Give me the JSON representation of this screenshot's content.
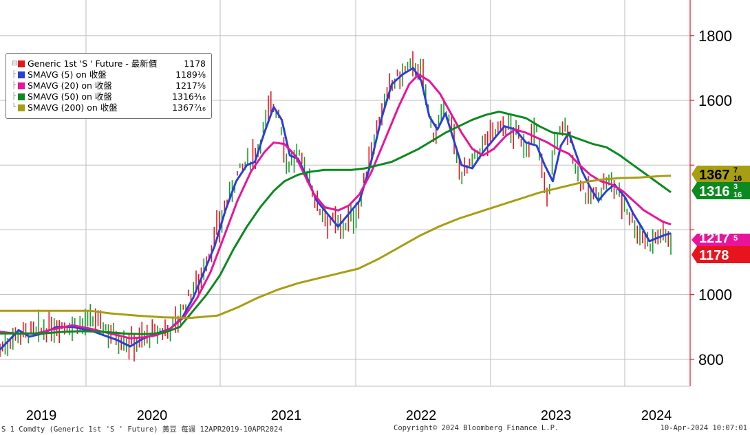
{
  "chart_data": {
    "type": "line",
    "x_start_year": 2019.28,
    "x_end_year": 2024.28,
    "ylim": [
      717,
      1910
    ],
    "y_ticks": [
      800,
      1000,
      1200,
      1400,
      1600,
      1800
    ],
    "y_tick_labels": [
      "800",
      "1000",
      "",
      "",
      "1600",
      "1800"
    ],
    "x_ticks": [
      2019,
      2020,
      2021,
      2022,
      2023,
      2024
    ],
    "x_tick_labels": [
      "2019",
      "2020",
      "2021",
      "2022",
      "2023",
      "2024"
    ],
    "grid": true,
    "series": [
      {
        "name": "Generic 1st 'S ' Future - 最新價",
        "color": "#e8141d",
        "style": "hl-bars",
        "last_value": "1178",
        "points": [
          [
            2019.28,
            830
          ],
          [
            2019.4,
            880
          ],
          [
            2019.55,
            880
          ],
          [
            2019.7,
            905
          ],
          [
            2019.85,
            905
          ],
          [
            2020.0,
            920
          ],
          [
            2020.12,
            880
          ],
          [
            2020.25,
            850
          ],
          [
            2020.35,
            865
          ],
          [
            2020.45,
            880
          ],
          [
            2020.55,
            895
          ],
          [
            2020.62,
            930
          ],
          [
            2020.7,
            1000
          ],
          [
            2020.78,
            1060
          ],
          [
            2020.86,
            1150
          ],
          [
            2020.95,
            1260
          ],
          [
            2021.05,
            1370
          ],
          [
            2021.15,
            1420
          ],
          [
            2021.2,
            1450
          ],
          [
            2021.3,
            1590
          ],
          [
            2021.36,
            1560
          ],
          [
            2021.42,
            1400
          ],
          [
            2021.5,
            1430
          ],
          [
            2021.58,
            1370
          ],
          [
            2021.65,
            1270
          ],
          [
            2021.72,
            1240
          ],
          [
            2021.8,
            1210
          ],
          [
            2021.86,
            1220
          ],
          [
            2021.95,
            1260
          ],
          [
            2022.02,
            1400
          ],
          [
            2022.1,
            1530
          ],
          [
            2022.2,
            1650
          ],
          [
            2022.3,
            1690
          ],
          [
            2022.38,
            1710
          ],
          [
            2022.44,
            1660
          ],
          [
            2022.5,
            1500
          ],
          [
            2022.56,
            1530
          ],
          [
            2022.62,
            1580
          ],
          [
            2022.7,
            1380
          ],
          [
            2022.78,
            1390
          ],
          [
            2022.86,
            1450
          ],
          [
            2022.95,
            1500
          ],
          [
            2023.05,
            1520
          ],
          [
            2023.12,
            1500
          ],
          [
            2023.2,
            1460
          ],
          [
            2023.28,
            1500
          ],
          [
            2023.36,
            1290
          ],
          [
            2023.42,
            1480
          ],
          [
            2023.5,
            1520
          ],
          [
            2023.58,
            1380
          ],
          [
            2023.66,
            1300
          ],
          [
            2023.74,
            1310
          ],
          [
            2023.8,
            1350
          ],
          [
            2023.88,
            1320
          ],
          [
            2023.96,
            1260
          ],
          [
            2024.04,
            1190
          ],
          [
            2024.12,
            1160
          ],
          [
            2024.2,
            1185
          ],
          [
            2024.28,
            1178
          ]
        ]
      },
      {
        "name": "SMAVG (5)  on 收盤",
        "color": "#2740d8",
        "style": "line",
        "last_value": "1189",
        "last_frac": "1/8",
        "points": [
          [
            2019.28,
            830
          ],
          [
            2019.35,
            860
          ],
          [
            2019.42,
            890
          ],
          [
            2019.5,
            870
          ],
          [
            2019.6,
            880
          ],
          [
            2019.7,
            900
          ],
          [
            2019.82,
            900
          ],
          [
            2019.95,
            890
          ],
          [
            2020.05,
            875
          ],
          [
            2020.15,
            860
          ],
          [
            2020.25,
            840
          ],
          [
            2020.35,
            865
          ],
          [
            2020.45,
            880
          ],
          [
            2020.55,
            895
          ],
          [
            2020.64,
            930
          ],
          [
            2020.72,
            990
          ],
          [
            2020.8,
            1070
          ],
          [
            2020.88,
            1150
          ],
          [
            2020.96,
            1260
          ],
          [
            2021.04,
            1350
          ],
          [
            2021.12,
            1400
          ],
          [
            2021.18,
            1410
          ],
          [
            2021.25,
            1500
          ],
          [
            2021.32,
            1580
          ],
          [
            2021.38,
            1540
          ],
          [
            2021.44,
            1430
          ],
          [
            2021.5,
            1420
          ],
          [
            2021.56,
            1370
          ],
          [
            2021.64,
            1290
          ],
          [
            2021.72,
            1250
          ],
          [
            2021.8,
            1210
          ],
          [
            2021.88,
            1250
          ],
          [
            2021.96,
            1290
          ],
          [
            2022.04,
            1400
          ],
          [
            2022.12,
            1540
          ],
          [
            2022.2,
            1650
          ],
          [
            2022.28,
            1680
          ],
          [
            2022.36,
            1700
          ],
          [
            2022.42,
            1660
          ],
          [
            2022.48,
            1550
          ],
          [
            2022.54,
            1510
          ],
          [
            2022.6,
            1560
          ],
          [
            2022.66,
            1480
          ],
          [
            2022.72,
            1400
          ],
          [
            2022.8,
            1390
          ],
          [
            2022.88,
            1440
          ],
          [
            2022.96,
            1480
          ],
          [
            2023.04,
            1520
          ],
          [
            2023.12,
            1510
          ],
          [
            2023.2,
            1470
          ],
          [
            2023.28,
            1460
          ],
          [
            2023.34,
            1400
          ],
          [
            2023.4,
            1350
          ],
          [
            2023.46,
            1460
          ],
          [
            2023.52,
            1500
          ],
          [
            2023.56,
            1450
          ],
          [
            2023.62,
            1380
          ],
          [
            2023.68,
            1330
          ],
          [
            2023.74,
            1290
          ],
          [
            2023.8,
            1320
          ],
          [
            2023.86,
            1340
          ],
          [
            2023.94,
            1300
          ],
          [
            2024.0,
            1250
          ],
          [
            2024.06,
            1210
          ],
          [
            2024.12,
            1165
          ],
          [
            2024.18,
            1175
          ],
          [
            2024.24,
            1185
          ],
          [
            2024.28,
            1189
          ]
        ]
      },
      {
        "name": "SMAVG (20)  on 收盤",
        "color": "#e8159a",
        "style": "line",
        "last_value": "1217",
        "last_frac": "5/8",
        "points": [
          [
            2019.28,
            885
          ],
          [
            2019.4,
            880
          ],
          [
            2019.55,
            880
          ],
          [
            2019.7,
            895
          ],
          [
            2019.82,
            905
          ],
          [
            2019.95,
            895
          ],
          [
            2020.05,
            885
          ],
          [
            2020.15,
            875
          ],
          [
            2020.25,
            865
          ],
          [
            2020.35,
            868
          ],
          [
            2020.45,
            875
          ],
          [
            2020.55,
            895
          ],
          [
            2020.65,
            930
          ],
          [
            2020.75,
            990
          ],
          [
            2020.85,
            1070
          ],
          [
            2020.95,
            1180
          ],
          [
            2021.05,
            1290
          ],
          [
            2021.15,
            1380
          ],
          [
            2021.25,
            1440
          ],
          [
            2021.32,
            1470
          ],
          [
            2021.4,
            1465
          ],
          [
            2021.48,
            1430
          ],
          [
            2021.55,
            1370
          ],
          [
            2021.62,
            1310
          ],
          [
            2021.7,
            1270
          ],
          [
            2021.8,
            1260
          ],
          [
            2021.88,
            1275
          ],
          [
            2021.96,
            1310
          ],
          [
            2022.05,
            1380
          ],
          [
            2022.15,
            1480
          ],
          [
            2022.25,
            1580
          ],
          [
            2022.33,
            1650
          ],
          [
            2022.4,
            1680
          ],
          [
            2022.48,
            1660
          ],
          [
            2022.56,
            1620
          ],
          [
            2022.64,
            1560
          ],
          [
            2022.72,
            1500
          ],
          [
            2022.8,
            1450
          ],
          [
            2022.88,
            1430
          ],
          [
            2022.96,
            1450
          ],
          [
            2023.05,
            1490
          ],
          [
            2023.12,
            1510
          ],
          [
            2023.2,
            1500
          ],
          [
            2023.28,
            1485
          ],
          [
            2023.36,
            1470
          ],
          [
            2023.44,
            1450
          ],
          [
            2023.52,
            1435
          ],
          [
            2023.6,
            1400
          ],
          [
            2023.68,
            1370
          ],
          [
            2023.76,
            1350
          ],
          [
            2023.84,
            1340
          ],
          [
            2023.92,
            1320
          ],
          [
            2024.0,
            1290
          ],
          [
            2024.08,
            1260
          ],
          [
            2024.16,
            1240
          ],
          [
            2024.22,
            1225
          ],
          [
            2024.28,
            1217
          ]
        ]
      },
      {
        "name": "SMAVG (50)  on 收盤",
        "color": "#0b8a1f",
        "style": "line",
        "last_value": "1316",
        "last_frac": "3/16",
        "points": [
          [
            2019.28,
            880
          ],
          [
            2019.45,
            880
          ],
          [
            2019.6,
            880
          ],
          [
            2019.75,
            885
          ],
          [
            2019.9,
            887
          ],
          [
            2020.05,
            885
          ],
          [
            2020.2,
            880
          ],
          [
            2020.35,
            878
          ],
          [
            2020.5,
            882
          ],
          [
            2020.62,
            900
          ],
          [
            2020.72,
            950
          ],
          [
            2020.82,
            1000
          ],
          [
            2020.92,
            1060
          ],
          [
            2021.02,
            1140
          ],
          [
            2021.12,
            1210
          ],
          [
            2021.22,
            1270
          ],
          [
            2021.32,
            1320
          ],
          [
            2021.4,
            1350
          ],
          [
            2021.5,
            1370
          ],
          [
            2021.6,
            1380
          ],
          [
            2021.7,
            1385
          ],
          [
            2021.8,
            1385
          ],
          [
            2021.9,
            1385
          ],
          [
            2022.0,
            1390
          ],
          [
            2022.1,
            1400
          ],
          [
            2022.2,
            1410
          ],
          [
            2022.3,
            1430
          ],
          [
            2022.4,
            1450
          ],
          [
            2022.5,
            1475
          ],
          [
            2022.6,
            1500
          ],
          [
            2022.7,
            1520
          ],
          [
            2022.8,
            1540
          ],
          [
            2022.9,
            1555
          ],
          [
            2023.0,
            1565
          ],
          [
            2023.1,
            1555
          ],
          [
            2023.2,
            1545
          ],
          [
            2023.3,
            1520
          ],
          [
            2023.4,
            1500
          ],
          [
            2023.5,
            1495
          ],
          [
            2023.6,
            1480
          ],
          [
            2023.7,
            1465
          ],
          [
            2023.8,
            1455
          ],
          [
            2023.9,
            1430
          ],
          [
            2024.0,
            1400
          ],
          [
            2024.1,
            1370
          ],
          [
            2024.2,
            1340
          ],
          [
            2024.28,
            1316
          ]
        ]
      },
      {
        "name": "SMAVG (200)  on 收盤",
        "color": "#a79e12",
        "style": "line",
        "last_value": "1367",
        "last_frac": "7/16",
        "points": [
          [
            2019.28,
            950
          ],
          [
            2019.5,
            950
          ],
          [
            2019.75,
            950
          ],
          [
            2019.95,
            950
          ],
          [
            2020.1,
            942
          ],
          [
            2020.3,
            935
          ],
          [
            2020.5,
            930
          ],
          [
            2020.7,
            928
          ],
          [
            2020.9,
            935
          ],
          [
            2021.05,
            960
          ],
          [
            2021.2,
            990
          ],
          [
            2021.35,
            1015
          ],
          [
            2021.5,
            1035
          ],
          [
            2021.65,
            1050
          ],
          [
            2021.8,
            1065
          ],
          [
            2021.95,
            1080
          ],
          [
            2022.1,
            1110
          ],
          [
            2022.25,
            1145
          ],
          [
            2022.4,
            1180
          ],
          [
            2022.55,
            1210
          ],
          [
            2022.7,
            1235
          ],
          [
            2022.85,
            1255
          ],
          [
            2023.0,
            1275
          ],
          [
            2023.15,
            1295
          ],
          [
            2023.3,
            1315
          ],
          [
            2023.45,
            1330
          ],
          [
            2023.6,
            1345
          ],
          [
            2023.75,
            1355
          ],
          [
            2023.9,
            1360
          ],
          [
            2024.05,
            1362
          ],
          [
            2024.2,
            1366
          ],
          [
            2024.28,
            1367
          ]
        ]
      }
    ],
    "labels_right": [
      {
        "text": "1367",
        "frac_num": "7",
        "frac_den": "16",
        "bg": "#a79e12",
        "fg": "#000000",
        "value": 1367
      },
      {
        "text": "1316",
        "frac_num": "3",
        "frac_den": "16",
        "bg": "#0b8a1f",
        "fg": "#ffffff",
        "value": 1316
      },
      {
        "text": "1217",
        "frac_num": "5",
        "frac_den": "",
        "bg": "#e8159a",
        "fg": "#ffffff",
        "value": 1217
      },
      {
        "text": "1178",
        "frac_num": "",
        "frac_den": "",
        "bg": "#e8141d",
        "fg": "#ffffff",
        "value": 1178
      }
    ]
  },
  "legend": [
    {
      "label": "Generic 1st 'S ' Future - 最新價",
      "value": "1178",
      "color": "#e8141d"
    },
    {
      "label": "SMAVG (5)  on 收盤",
      "value": "1189⅛",
      "color": "#2740d8"
    },
    {
      "label": "SMAVG (20)  on 收盤",
      "value": "1217⅝",
      "color": "#e8159a"
    },
    {
      "label": "SMAVG (50)  on 收盤",
      "value": "1316³⁄₁₆",
      "color": "#0b8a1f"
    },
    {
      "label": "SMAVG (200)  on 收盤",
      "value": "1367⁷⁄₁₆",
      "color": "#a79e12"
    }
  ],
  "footer": {
    "left": "S 1 Comdty (Generic 1st 'S ' Future) 黃豆  每週 12APR2019-10APR2024",
    "center": "Copyright© 2024 Bloomberg Finance L.P.",
    "right": "10-Apr-2024 10:07:01"
  }
}
